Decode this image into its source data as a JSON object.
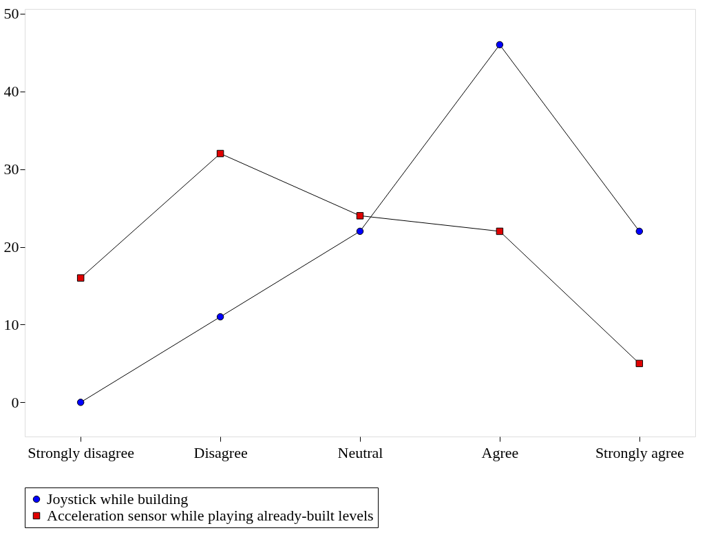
{
  "chart_data": {
    "type": "line",
    "categories": [
      "Strongly disagree",
      "Disagree",
      "Neutral",
      "Agree",
      "Strongly agree"
    ],
    "series": [
      {
        "name": "Joystick while building",
        "color": "#0000ff",
        "marker": "circle",
        "values": [
          0,
          11,
          22,
          46,
          22
        ]
      },
      {
        "name": "Acceleration sensor while playing already-built levels",
        "color": "#e00000",
        "marker": "square",
        "values": [
          16,
          32,
          24,
          22,
          5
        ]
      }
    ],
    "ylim": [
      -4.4,
      50.6
    ],
    "yticks": [
      0,
      10,
      20,
      30,
      40,
      50
    ],
    "grid": false,
    "legend": "bottom",
    "line_style": "solid"
  }
}
